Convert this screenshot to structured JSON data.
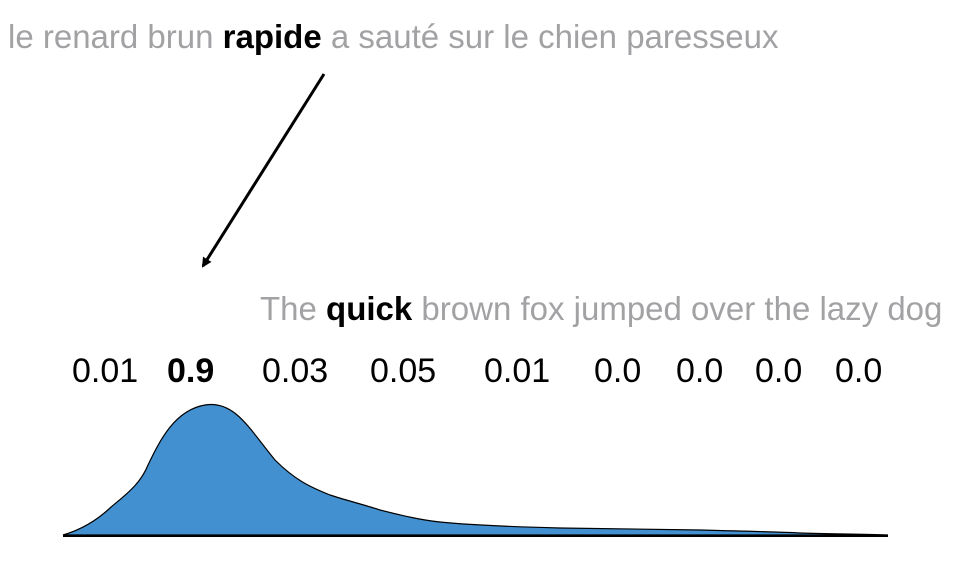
{
  "source_sentence": {
    "before": "le renard brun",
    "highlight": "rapide",
    "after": "a sauté sur le chien paresseux"
  },
  "target_sentence": {
    "before": "The",
    "highlight": "quick",
    "after": "brown fox jumped over the lazy dog"
  },
  "scores": [
    "0.01",
    "0.9",
    "0.03",
    "0.05",
    "0.01",
    "0.0",
    "0.0",
    "0.0",
    "0.0"
  ],
  "highlight_index": 1,
  "colors": {
    "faded_text": "#a2a2a5",
    "highlight_text": "#000000",
    "curve_fill": "#4290cf"
  }
}
